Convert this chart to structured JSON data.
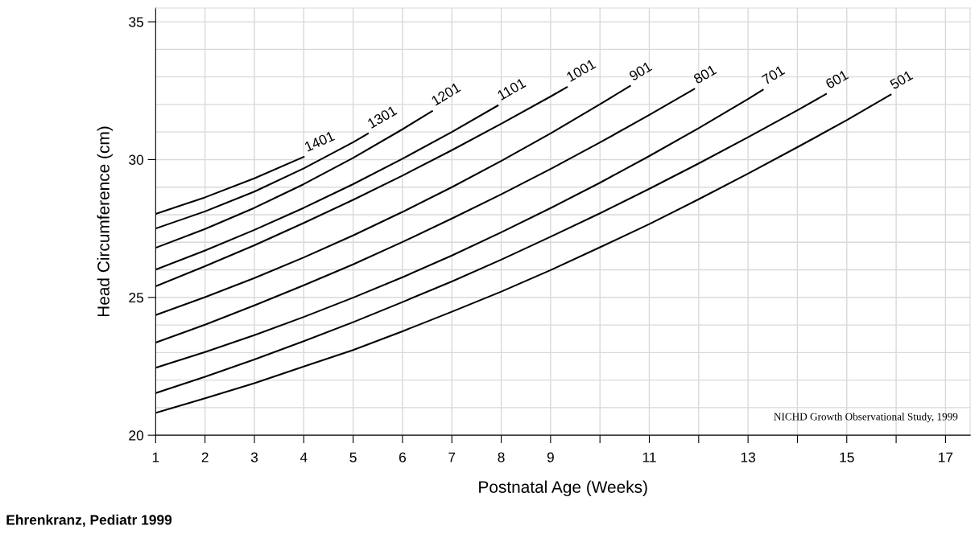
{
  "chart_data": {
    "type": "line",
    "xlabel": "Postnatal Age (Weeks)",
    "ylabel": "Head Circumference (cm)",
    "annotations": [
      "NICHD Growth Observational Study, 1999",
      "Ehrenkranz, Pediatr 1999"
    ],
    "xlim": [
      1,
      17.5
    ],
    "ylim": [
      20,
      35.5
    ],
    "xticks": [
      1,
      2,
      3,
      4,
      5,
      6,
      7,
      8,
      9,
      {
        "value": 10,
        "label": null
      },
      11,
      {
        "value": 12,
        "label": null
      },
      13,
      {
        "value": 14,
        "label": null
      },
      15,
      {
        "value": 16,
        "label": null
      },
      17
    ],
    "yticks": [
      20,
      {
        "value": 21,
        "label": null
      },
      {
        "value": 22,
        "label": null
      },
      {
        "value": 23,
        "label": null
      },
      {
        "value": 24,
        "label": null
      },
      25,
      {
        "value": 26,
        "label": null
      },
      {
        "value": 27,
        "label": null
      },
      {
        "value": 28,
        "label": null
      },
      {
        "value": 29,
        "label": null
      },
      30,
      {
        "value": 31,
        "label": null
      },
      {
        "value": 32,
        "label": null
      },
      {
        "value": 33,
        "label": null
      },
      {
        "value": 34,
        "label": null
      },
      35
    ],
    "grid": true,
    "legend": false,
    "marker": "none",
    "line_style": "solid",
    "series": [
      {
        "name": "1401",
        "color": "#000000",
        "x": [
          1,
          2,
          3,
          4
        ],
        "values": [
          28.03,
          28.63,
          29.32,
          30.1
        ]
      },
      {
        "name": "1301",
        "color": "#000000",
        "x": [
          1,
          2,
          3,
          4,
          5,
          5.3
        ],
        "values": [
          27.5,
          28.12,
          28.84,
          29.68,
          30.63,
          30.94
        ]
      },
      {
        "name": "1201",
        "color": "#000000",
        "x": [
          1,
          2,
          3,
          4,
          5,
          6,
          6.6
        ],
        "values": [
          26.8,
          27.48,
          28.25,
          29.11,
          30.06,
          31.1,
          31.76
        ]
      },
      {
        "name": "1101",
        "color": "#000000",
        "x": [
          1,
          2,
          3,
          4,
          5,
          6,
          7,
          7.93
        ],
        "values": [
          26.01,
          26.7,
          27.45,
          28.25,
          29.11,
          30.03,
          31.0,
          31.96
        ]
      },
      {
        "name": "1001",
        "color": "#000000",
        "x": [
          1,
          2,
          3,
          4,
          5,
          6,
          7,
          8,
          9,
          9.33
        ],
        "values": [
          25.4,
          26.13,
          26.89,
          27.7,
          28.54,
          29.42,
          30.34,
          31.3,
          32.29,
          32.63
        ]
      },
      {
        "name": "901",
        "color": "#000000",
        "x": [
          1,
          2,
          3,
          4,
          5,
          6,
          7,
          8,
          9,
          10,
          10.61
        ],
        "values": [
          24.36,
          25.01,
          25.7,
          26.45,
          27.25,
          28.1,
          29.0,
          29.95,
          30.95,
          32.01,
          32.67
        ]
      },
      {
        "name": "801",
        "color": "#000000",
        "x": [
          1,
          2,
          3,
          4,
          5,
          6,
          7,
          8,
          9,
          10,
          11,
          11.91
        ],
        "values": [
          23.36,
          24.01,
          24.71,
          25.44,
          26.2,
          27.01,
          27.86,
          28.74,
          29.66,
          30.62,
          31.62,
          32.56
        ]
      },
      {
        "name": "701",
        "color": "#000000",
        "x": [
          1,
          2,
          3,
          4,
          5,
          6,
          7,
          8,
          9,
          10,
          11,
          12,
          13,
          13.3
        ],
        "values": [
          22.45,
          23.02,
          23.63,
          24.29,
          24.99,
          25.73,
          26.52,
          27.36,
          28.24,
          29.16,
          30.13,
          31.14,
          32.2,
          32.53
        ]
      },
      {
        "name": "601",
        "color": "#000000",
        "x": [
          1,
          2,
          3,
          4,
          5,
          6,
          7,
          8,
          9,
          10,
          11,
          12,
          13,
          14,
          14.58
        ],
        "values": [
          21.53,
          22.12,
          22.75,
          23.41,
          24.1,
          24.83,
          25.58,
          26.37,
          27.2,
          28.05,
          28.94,
          29.86,
          30.81,
          31.79,
          32.38
        ]
      },
      {
        "name": "501",
        "color": "#000000",
        "x": [
          1,
          2,
          3,
          4,
          5,
          6,
          7,
          8,
          9,
          10,
          11,
          12,
          13,
          14,
          15,
          15.89
        ],
        "values": [
          20.81,
          21.34,
          21.89,
          22.49,
          23.09,
          23.77,
          24.48,
          25.21,
          25.99,
          26.82,
          27.66,
          28.56,
          29.49,
          30.45,
          31.43,
          32.36
        ]
      }
    ]
  }
}
